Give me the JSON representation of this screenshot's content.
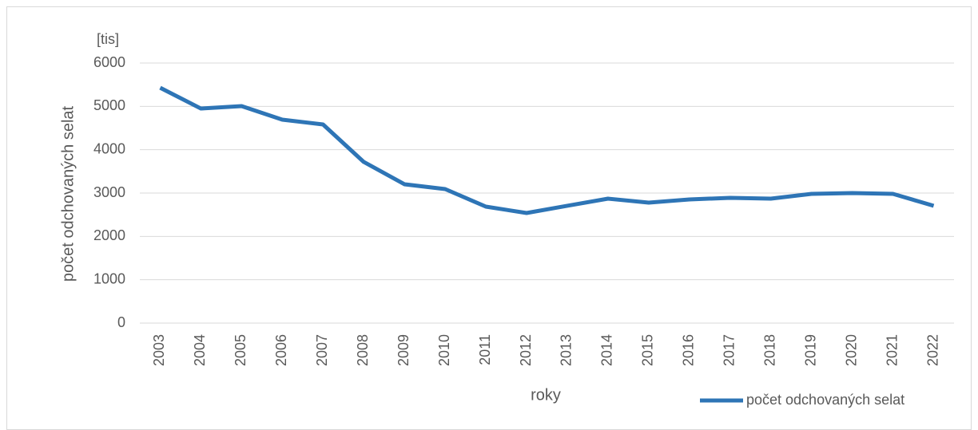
{
  "chart_data": {
    "type": "line",
    "y_unit": "[tis]",
    "y_label": "počet odchovaných selat",
    "x_label": "roky",
    "categories": [
      "2003",
      "2004",
      "2005",
      "2006",
      "2007",
      "2008",
      "2009",
      "2010",
      "2011",
      "2012",
      "2013",
      "2014",
      "2015",
      "2016",
      "2017",
      "2018",
      "2019",
      "2020",
      "2021",
      "2022"
    ],
    "series": [
      {
        "name": "počet odchovaných selat",
        "color": "#2e75b6",
        "values": [
          5430,
          4950,
          5006,
          4693,
          4583,
          3718,
          3203,
          3092,
          2687,
          2540,
          2706,
          2871,
          2780,
          2853,
          2890,
          2871,
          2982,
          3000,
          2982,
          2706
        ]
      }
    ],
    "ylim": [
      0,
      6000
    ],
    "yticks": [
      0,
      1000,
      2000,
      3000,
      4000,
      5000,
      6000
    ],
    "grid": true,
    "legend": "bottom-right"
  }
}
